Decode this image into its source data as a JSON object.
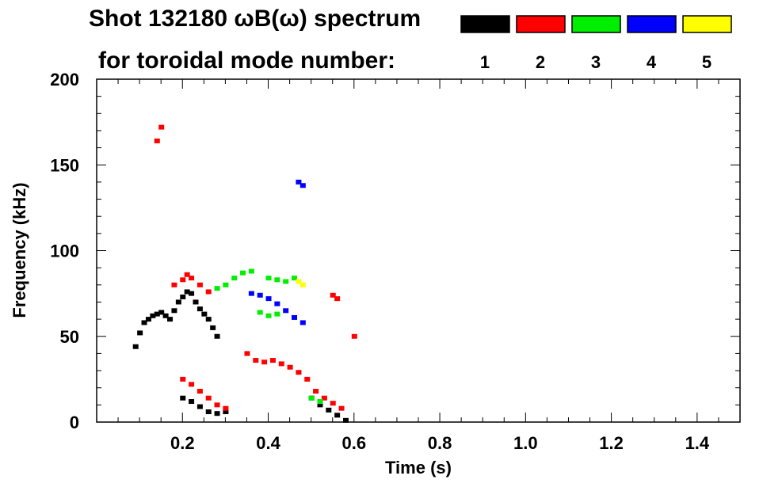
{
  "chart_data": {
    "type": "scatter",
    "title_line1": "Shot 132180 ωB(ω) spectrum",
    "title_line2": "for toroidal mode number:",
    "xlabel": "Time (s)",
    "ylabel": "Frequency (kHz)",
    "xlim": [
      0.0,
      1.5
    ],
    "ylim": [
      0,
      200
    ],
    "x_ticks": [
      "0.2",
      "0.4",
      "0.6",
      "0.8",
      "1.0",
      "1.2",
      "1.4"
    ],
    "x_tick_values": [
      0.2,
      0.4,
      0.6,
      0.8,
      1.0,
      1.2,
      1.4
    ],
    "y_ticks": [
      "0",
      "50",
      "100",
      "150",
      "200"
    ],
    "y_tick_values": [
      0,
      50,
      100,
      150,
      200
    ],
    "legend": [
      {
        "label": "1",
        "color": "#000000"
      },
      {
        "label": "2",
        "color": "#ff0000"
      },
      {
        "label": "3",
        "color": "#00ee00"
      },
      {
        "label": "4",
        "color": "#0000ff"
      },
      {
        "label": "5",
        "color": "#ffff00"
      }
    ],
    "series": [
      {
        "name": "1",
        "color": "#000000",
        "points": [
          [
            0.09,
            44
          ],
          [
            0.1,
            52
          ],
          [
            0.11,
            58
          ],
          [
            0.12,
            60
          ],
          [
            0.13,
            62
          ],
          [
            0.14,
            63
          ],
          [
            0.15,
            64
          ],
          [
            0.16,
            62
          ],
          [
            0.17,
            60
          ],
          [
            0.18,
            65
          ],
          [
            0.19,
            70
          ],
          [
            0.2,
            73
          ],
          [
            0.21,
            76
          ],
          [
            0.22,
            75
          ],
          [
            0.23,
            70
          ],
          [
            0.24,
            66
          ],
          [
            0.25,
            63
          ],
          [
            0.26,
            60
          ],
          [
            0.27,
            55
          ],
          [
            0.28,
            50
          ],
          [
            0.2,
            14
          ],
          [
            0.22,
            12
          ],
          [
            0.24,
            9
          ],
          [
            0.26,
            6
          ],
          [
            0.28,
            5
          ],
          [
            0.3,
            6
          ],
          [
            0.5,
            14
          ],
          [
            0.52,
            10
          ],
          [
            0.54,
            7
          ],
          [
            0.56,
            4
          ],
          [
            0.58,
            1
          ]
        ]
      },
      {
        "name": "2",
        "color": "#ff0000",
        "points": [
          [
            0.14,
            164
          ],
          [
            0.15,
            172
          ],
          [
            0.18,
            80
          ],
          [
            0.2,
            83
          ],
          [
            0.21,
            86
          ],
          [
            0.22,
            84
          ],
          [
            0.24,
            80
          ],
          [
            0.26,
            76
          ],
          [
            0.2,
            25
          ],
          [
            0.22,
            22
          ],
          [
            0.24,
            18
          ],
          [
            0.26,
            14
          ],
          [
            0.28,
            10
          ],
          [
            0.3,
            8
          ],
          [
            0.35,
            40
          ],
          [
            0.37,
            36
          ],
          [
            0.39,
            35
          ],
          [
            0.41,
            36
          ],
          [
            0.43,
            34
          ],
          [
            0.45,
            32
          ],
          [
            0.47,
            29
          ],
          [
            0.49,
            25
          ],
          [
            0.51,
            18
          ],
          [
            0.53,
            14
          ],
          [
            0.55,
            11
          ],
          [
            0.57,
            8
          ],
          [
            0.55,
            74
          ],
          [
            0.56,
            72
          ],
          [
            0.6,
            50
          ]
        ]
      },
      {
        "name": "3",
        "color": "#00ee00",
        "points": [
          [
            0.28,
            78
          ],
          [
            0.3,
            80
          ],
          [
            0.32,
            84
          ],
          [
            0.34,
            87
          ],
          [
            0.36,
            88
          ],
          [
            0.4,
            84
          ],
          [
            0.42,
            83
          ],
          [
            0.44,
            82
          ],
          [
            0.46,
            84
          ],
          [
            0.38,
            64
          ],
          [
            0.4,
            62
          ],
          [
            0.42,
            63
          ],
          [
            0.5,
            14
          ],
          [
            0.52,
            12
          ]
        ]
      },
      {
        "name": "4",
        "color": "#0000ff",
        "points": [
          [
            0.36,
            75
          ],
          [
            0.38,
            74
          ],
          [
            0.4,
            72
          ],
          [
            0.42,
            69
          ],
          [
            0.44,
            65
          ],
          [
            0.46,
            61
          ],
          [
            0.48,
            58
          ],
          [
            0.47,
            140
          ],
          [
            0.48,
            138
          ]
        ]
      },
      {
        "name": "5",
        "color": "#ffff00",
        "points": [
          [
            0.47,
            82
          ],
          [
            0.48,
            80
          ]
        ]
      }
    ]
  }
}
